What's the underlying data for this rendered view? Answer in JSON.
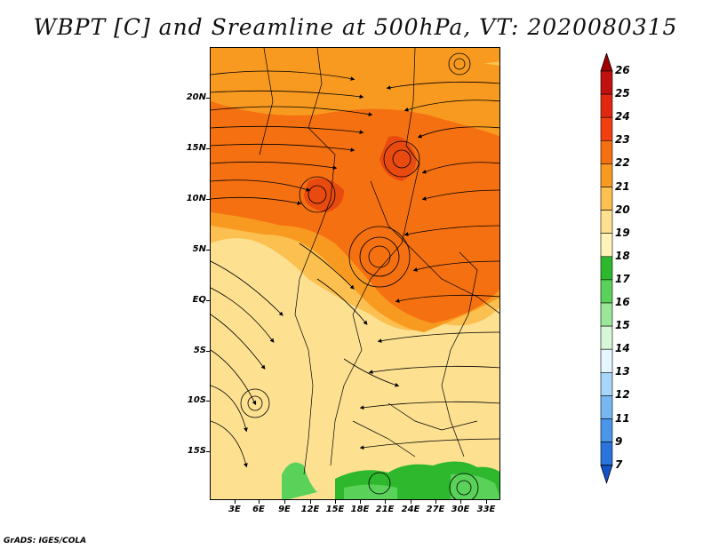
{
  "title": "WBPT [C] and Sreamline at 500hPa, VT: 2020080315",
  "credit": "GrADS: IGES/COLA",
  "lat_labels": [
    "20N",
    "15N",
    "10N",
    "5N",
    "EQ",
    "5S",
    "10S",
    "15S"
  ],
  "lon_labels": [
    "3E",
    "6E",
    "9E",
    "12E",
    "15E",
    "18E",
    "21E",
    "24E",
    "27E",
    "30E",
    "33E"
  ],
  "colorbar": {
    "labels": [
      "26",
      "25",
      "24",
      "23",
      "22",
      "21",
      "20",
      "19",
      "18",
      "17",
      "16",
      "15",
      "14",
      "13",
      "12",
      "11",
      "9",
      "7"
    ],
    "colors": [
      "#a00000",
      "#c01010",
      "#e02810",
      "#f04010",
      "#f57010",
      "#f89a20",
      "#fbc050",
      "#fde090",
      "#fff4b8",
      "#2db82d",
      "#5ad25a",
      "#9ae79a",
      "#d8f6d8",
      "#e6f6ff",
      "#a8d6f8",
      "#78b8f2",
      "#4a96e8",
      "#2a74dc",
      "#1554c8"
    ]
  },
  "legend_colors": {
    "warm_core": "#e84a10",
    "warm": "#f57010",
    "mid": "#fbc050",
    "cool": "#fde090",
    "green": "#2db82d"
  }
}
